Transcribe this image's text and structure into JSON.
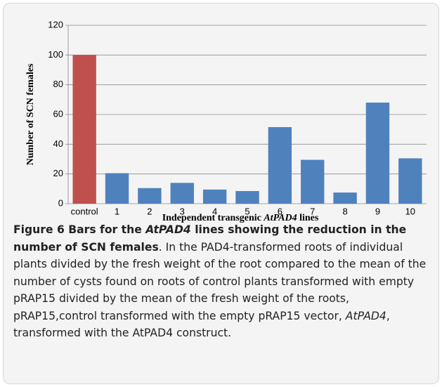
{
  "chart_data": {
    "type": "bar",
    "categories": [
      "control",
      "1",
      "2",
      "3",
      "4",
      "5",
      "6",
      "7",
      "8",
      "9",
      "10"
    ],
    "values": [
      100,
      20.5,
      10.5,
      14,
      9.5,
      8.5,
      51.5,
      29.5,
      7.5,
      68,
      30.5
    ],
    "colors": [
      "#c0504d",
      "#4f81bd",
      "#4f81bd",
      "#4f81bd",
      "#4f81bd",
      "#4f81bd",
      "#4f81bd",
      "#4f81bd",
      "#4f81bd",
      "#4f81bd",
      "#4f81bd"
    ],
    "ylim": [
      0,
      120
    ],
    "yticks": [
      0,
      20,
      40,
      60,
      80,
      100,
      120
    ],
    "grid": true,
    "ylabel": "Number of SCN females",
    "xlabel_parts": [
      {
        "text": "Independent transgenic ",
        "style": "normal"
      },
      {
        "text": "AtPAD4",
        "style": "italic"
      },
      {
        "text": " lines",
        "style": "normal"
      }
    ]
  },
  "caption": [
    {
      "text": "Figure 6 Bars for the ",
      "style": "bold"
    },
    {
      "text": "AtPAD4",
      "style": "bold-italic"
    },
    {
      "text": " lines showing the reduction in the number of SCN females",
      "style": "bold"
    },
    {
      "text": ". In the PAD4-transformed roots of individual plants divided by the fresh weight of the root compared to the mean of the number of cysts found on roots of control plants transformed with empty pRAP15 divided by the mean of the fresh weight of the roots, pRAP15,control transformed with the empty pRAP15 vector, ",
      "style": "normal"
    },
    {
      "text": "AtPAD4",
      "style": "italic"
    },
    {
      "text": ", transformed with the AtPAD4 construct.",
      "style": "normal"
    }
  ]
}
